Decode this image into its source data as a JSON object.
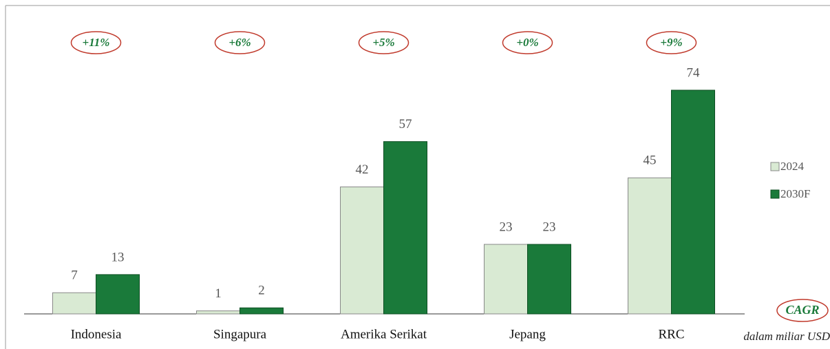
{
  "chart_data": {
    "type": "bar",
    "categories": [
      "Indonesia",
      "Singapura",
      "Amerika Serikat",
      "Jepang",
      "RRC"
    ],
    "series": [
      {
        "name": "2024",
        "color": "#d9ead3",
        "values": [
          7,
          1,
          42,
          23,
          45
        ]
      },
      {
        "name": "2030F",
        "color": "#1a7a3a",
        "values": [
          13,
          2,
          57,
          23,
          74
        ]
      }
    ],
    "cagr": [
      "+11%",
      "+6%",
      "+5%",
      "+0%",
      "+9%"
    ],
    "cagr_label": "CAGR",
    "unit_note": "dalam miliar USD",
    "legend": "right"
  }
}
